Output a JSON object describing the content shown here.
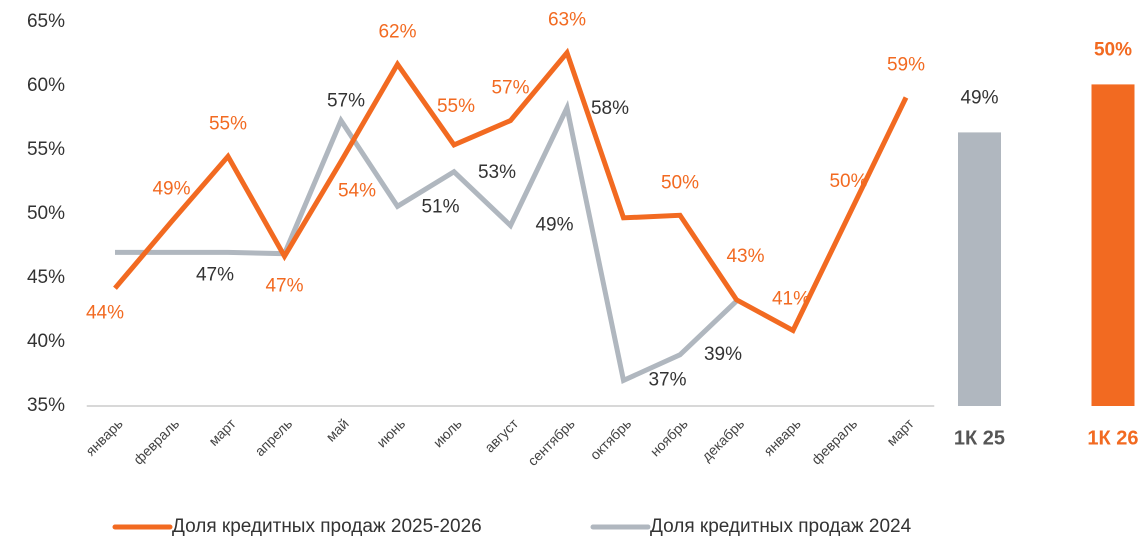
{
  "chart_data": [
    {
      "type": "line",
      "categories": [
        "январь",
        "февраль",
        "март",
        "апрель",
        "май",
        "июнь",
        "июль",
        "август",
        "сентябрь",
        "октябрь",
        "ноябрь",
        "декабрь",
        "январь",
        "февраль",
        "март"
      ],
      "series": [
        {
          "name": "Доля кредитных продаж 2025-2026",
          "color": "#f26a21",
          "values": [
            44.2,
            49.4,
            54.5,
            46.7,
            54.1,
            61.7,
            55.4,
            57.3,
            62.6,
            49.7,
            49.9,
            43.3,
            40.9,
            50.0,
            59.1
          ],
          "value_labels": [
            "44%",
            "49%",
            "55%",
            "47%",
            "54%",
            "62%",
            "55%",
            "57%",
            "63%",
            null,
            "50%",
            "43%",
            "41%",
            "50%",
            "59%"
          ]
        },
        {
          "name": "Доля кредитных продаж 2024",
          "color": "#b0b7bf",
          "values": [
            47.0,
            47.0,
            47.0,
            46.9,
            57.3,
            50.6,
            53.3,
            49.1,
            58.3,
            37.0,
            39.0,
            43.2,
            null,
            null,
            null
          ],
          "value_labels": [
            null,
            null,
            "47%",
            null,
            "57%",
            "51%",
            "53%",
            "49%",
            "58%",
            "37%",
            "39%",
            null,
            null,
            null,
            null
          ]
        }
      ],
      "ylim": [
        35,
        65
      ],
      "yticks": [
        {
          "value": 35,
          "label": "35%"
        },
        {
          "value": 40,
          "label": "40%"
        },
        {
          "value": 45,
          "label": "45%"
        },
        {
          "value": 50,
          "label": "50%"
        },
        {
          "value": 55,
          "label": "55%"
        },
        {
          "value": 60,
          "label": "60%"
        },
        {
          "value": 65,
          "label": "65%"
        }
      ],
      "grid": false,
      "legend": "bottom"
    },
    {
      "type": "bar",
      "categories": [
        "1К 25",
        "1К 26"
      ],
      "values": [
        49,
        50
      ],
      "value_labels": [
        "49%",
        "50%"
      ],
      "colors": [
        "#b0b7bf",
        "#f26a21"
      ],
      "ylim": [
        43.3,
        51.3
      ]
    }
  ]
}
